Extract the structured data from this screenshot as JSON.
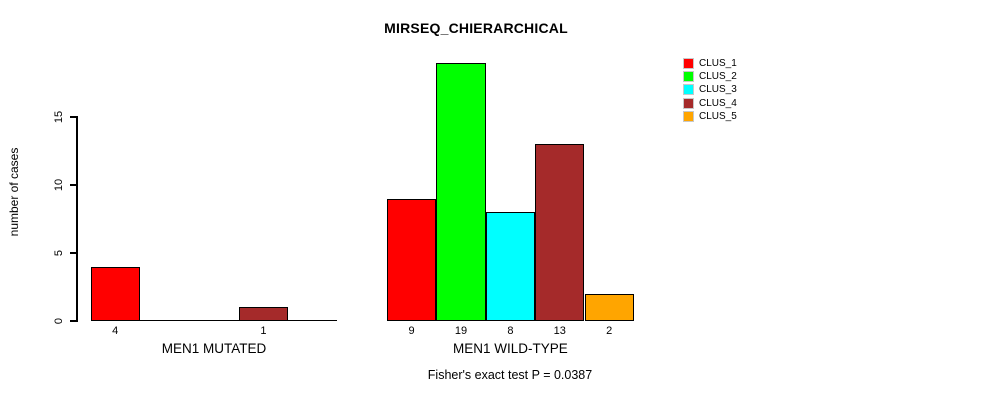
{
  "chart_data": {
    "type": "bar",
    "title": "MIRSEQ_CHIERARCHICAL",
    "ylabel": "number of cases",
    "annotation": "Fisher's exact test P = 0.0387",
    "yticks": [
      0,
      5,
      10,
      15
    ],
    "ylim": [
      0,
      19
    ],
    "grid": false,
    "legend_position": "right",
    "series_names": [
      "CLUS_1",
      "CLUS_2",
      "CLUS_3",
      "CLUS_4",
      "CLUS_5"
    ],
    "colors": [
      "#ff0000",
      "#00ff00",
      "#00ffff",
      "#a52a2a",
      "#ffa500"
    ],
    "groups": [
      {
        "label": "MEN1 MUTATED",
        "values": [
          4,
          0,
          0,
          1,
          0
        ]
      },
      {
        "label": "MEN1 WILD-TYPE",
        "values": [
          9,
          19,
          8,
          13,
          2
        ]
      }
    ]
  },
  "legend": {
    "items": [
      {
        "label": "CLUS_1",
        "color": "#ff0000"
      },
      {
        "label": "CLUS_2",
        "color": "#00ff00"
      },
      {
        "label": "CLUS_3",
        "color": "#00ffff"
      },
      {
        "label": "CLUS_4",
        "color": "#a52a2a"
      },
      {
        "label": "CLUS_5",
        "color": "#ffa500"
      }
    ]
  }
}
